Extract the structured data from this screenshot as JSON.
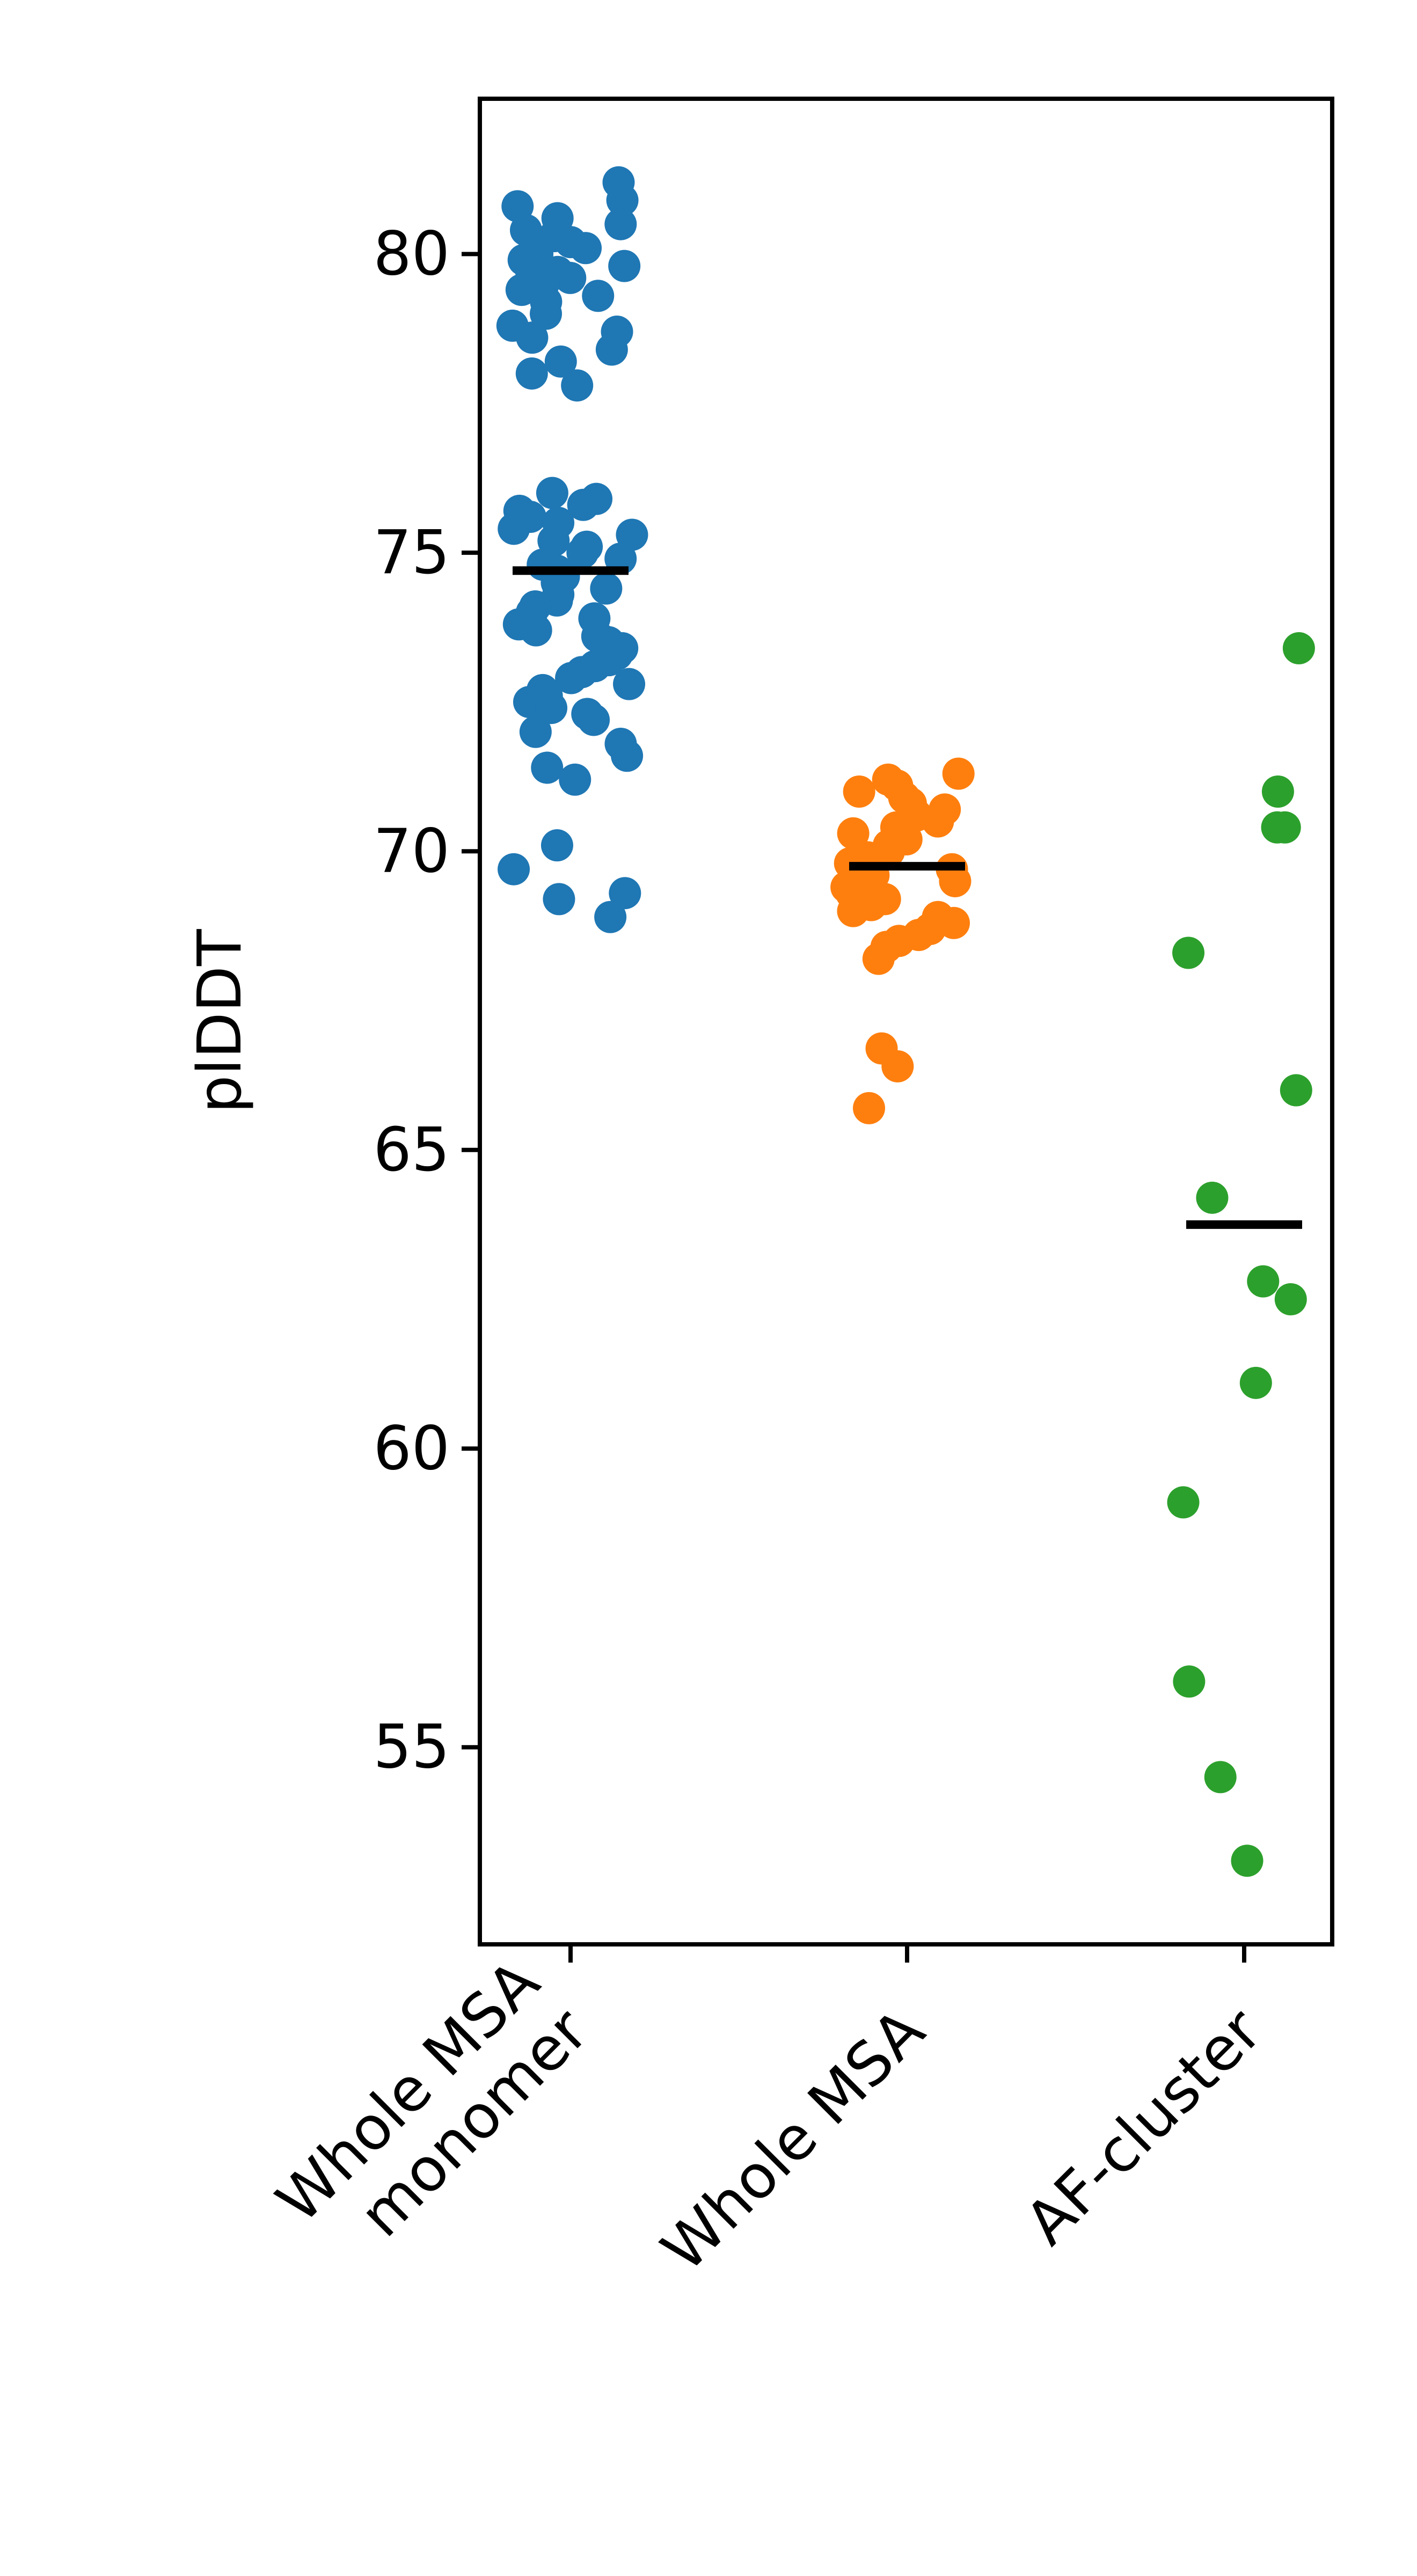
{
  "chart_data": {
    "type": "scatter",
    "title": "",
    "xlabel": "",
    "ylabel": "plDDT",
    "ylim": [
      51.7,
      82.6
    ],
    "yticks": [
      55,
      60,
      65,
      70,
      75,
      80
    ],
    "grid": false,
    "legend": "none",
    "categories": [
      "Whole MSA\nmonomer",
      "Whole MSA",
      "AF-cluster"
    ],
    "series": [
      {
        "color": "#1f77b4",
        "mean": 74.7,
        "values": [
          81.2,
          80.9,
          80.8,
          80.6,
          80.5,
          80.4,
          80.3,
          80.2,
          80.1,
          80.0,
          79.9,
          79.8,
          79.7,
          79.7,
          79.6,
          79.5,
          79.4,
          79.3,
          79.2,
          79.0,
          78.8,
          78.7,
          78.6,
          78.4,
          78.2,
          78.0,
          77.8,
          76.0,
          75.9,
          75.8,
          75.7,
          75.6,
          75.5,
          75.4,
          75.3,
          75.2,
          75.1,
          75.0,
          74.9,
          74.8,
          74.7,
          74.6,
          74.5,
          74.4,
          74.3,
          74.2,
          74.1,
          74.0,
          73.9,
          73.8,
          73.7,
          73.6,
          73.5,
          73.4,
          73.3,
          73.2,
          73.1,
          73.0,
          72.9,
          72.8,
          72.7,
          72.6,
          72.5,
          72.4,
          72.3,
          72.2,
          72.0,
          71.8,
          71.6,
          71.4,
          71.2,
          70.1,
          69.7,
          69.3,
          69.2,
          68.9
        ]
      },
      {
        "color": "#ff7f0e",
        "mean": 69.75,
        "values": [
          71.3,
          71.2,
          71.1,
          71.0,
          70.9,
          70.8,
          70.7,
          70.6,
          70.5,
          70.4,
          70.3,
          70.2,
          70.1,
          70.0,
          69.9,
          69.8,
          69.7,
          69.6,
          69.5,
          69.4,
          69.3,
          69.2,
          69.1,
          69.0,
          68.9,
          68.8,
          68.7,
          68.6,
          68.5,
          68.4,
          68.2,
          66.7,
          66.4,
          65.7
        ]
      },
      {
        "color": "#2ca02c",
        "mean": 63.75,
        "values": [
          73.4,
          71.0,
          70.4,
          70.4,
          68.3,
          66.0,
          64.2,
          62.8,
          62.5,
          61.1,
          59.1,
          56.1,
          54.5,
          53.1
        ]
      }
    ]
  }
}
